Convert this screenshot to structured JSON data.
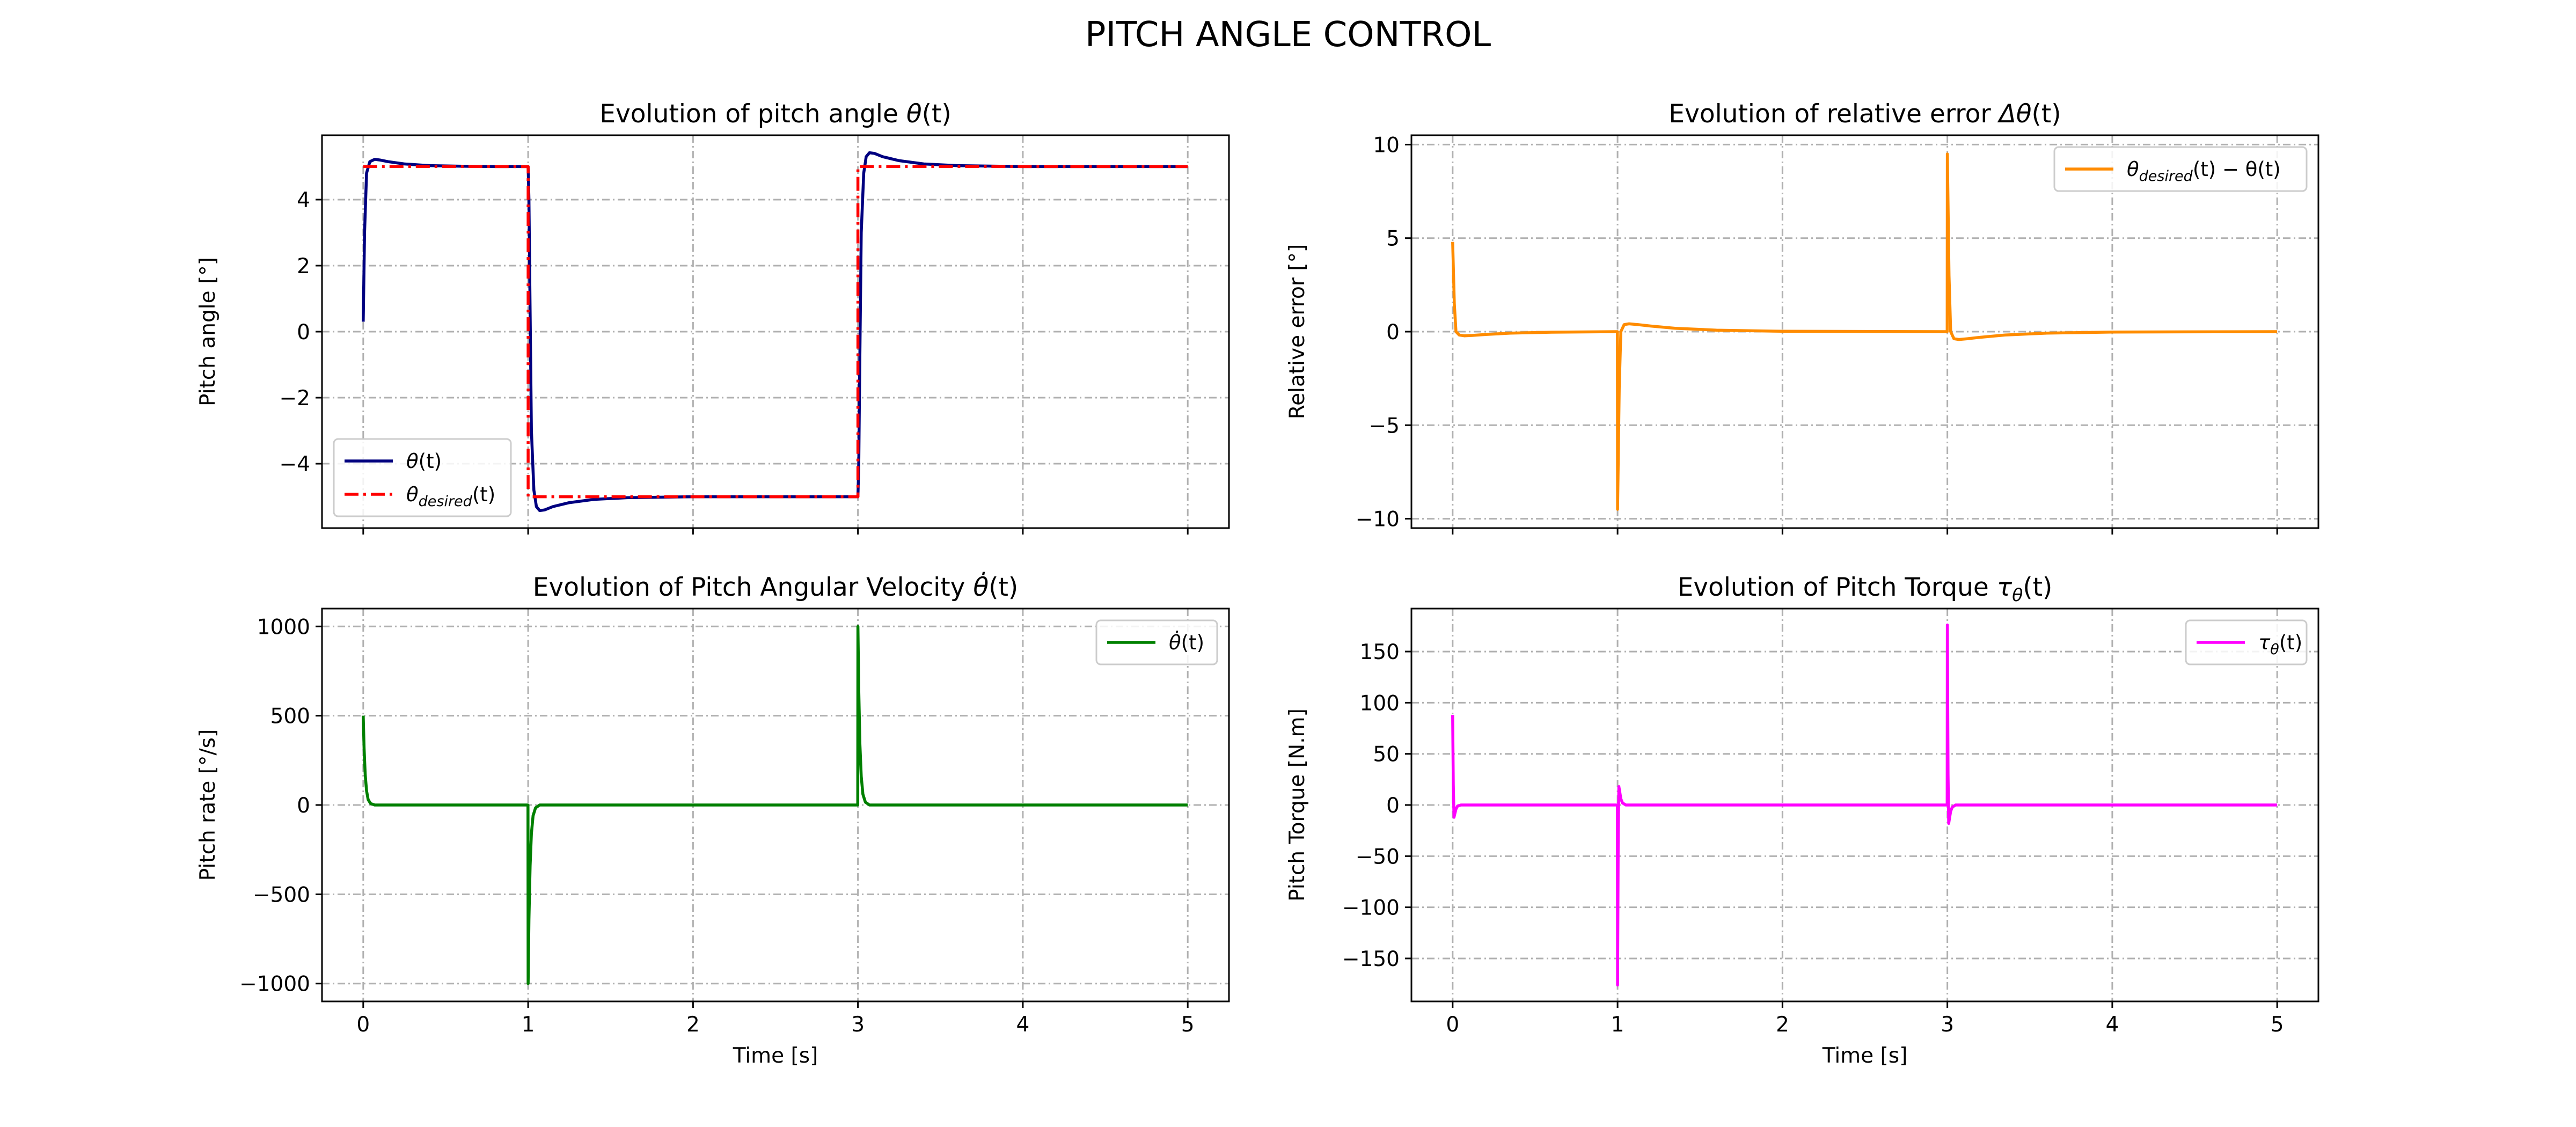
{
  "suptitle": "PITCH ANGLE CONTROL",
  "chart_data": [
    {
      "type": "line",
      "title_prefix": "Evolution of pitch angle ",
      "title_math": "θ",
      "title_suffix": "(t)",
      "xlabel": "",
      "ylabel": "Pitch angle [°]",
      "xlim": [
        -0.25,
        5.25
      ],
      "ylim": [
        -5.95,
        5.95
      ],
      "xticks": [
        0,
        1,
        2,
        3,
        4,
        5
      ],
      "xtick_labels": [
        "",
        "",
        "",
        "",
        "",
        ""
      ],
      "yticks": [
        -4,
        -2,
        0,
        2,
        4
      ],
      "ytick_labels": [
        "−4",
        "−2",
        "0",
        "2",
        "4"
      ],
      "grid": true,
      "legend_position": "lower-left",
      "series": [
        {
          "name": "θ(t)",
          "legend_main": "θ",
          "legend_sub": "",
          "legend_tail": "(t)",
          "color": "#000080",
          "dash": "solid",
          "x": [
            0,
            0.008,
            0.02,
            0.04,
            0.07,
            0.1,
            0.15,
            0.25,
            0.4,
            0.6,
            0.8,
            1.0,
            1.005,
            1.01,
            1.02,
            1.035,
            1.05,
            1.07,
            1.1,
            1.15,
            1.25,
            1.4,
            1.6,
            2.0,
            2.5,
            3.0,
            3.005,
            3.01,
            3.02,
            3.035,
            3.05,
            3.07,
            3.1,
            3.15,
            3.25,
            3.4,
            3.6,
            4.0,
            4.5,
            5.0
          ],
          "y": [
            0.3,
            3.0,
            4.8,
            5.15,
            5.22,
            5.2,
            5.15,
            5.08,
            5.03,
            5.01,
            5.0,
            5.0,
            4.0,
            1.5,
            -3.0,
            -4.8,
            -5.3,
            -5.42,
            -5.4,
            -5.3,
            -5.18,
            -5.08,
            -5.03,
            -5.0,
            -5.0,
            -5.0,
            -4.0,
            -1.5,
            3.0,
            4.8,
            5.3,
            5.42,
            5.4,
            5.3,
            5.18,
            5.08,
            5.03,
            5.0,
            5.0,
            5.0
          ]
        },
        {
          "name": "θdesired(t)",
          "legend_main": "θ",
          "legend_sub": "desired",
          "legend_tail": "(t)",
          "color": "#ff0000",
          "dash": "dashdot",
          "x": [
            0,
            1.0,
            1.0,
            3.0,
            3.0,
            5.0
          ],
          "y": [
            5,
            5,
            -5,
            -5,
            5,
            5
          ]
        }
      ]
    },
    {
      "type": "line",
      "title_prefix": "Evolution of relative error ",
      "title_math": "Δθ",
      "title_suffix": "(t)",
      "xlabel": "",
      "ylabel": "Relative error [°]",
      "xlim": [
        -0.25,
        5.25
      ],
      "ylim": [
        -10.5,
        10.5
      ],
      "xticks": [
        0,
        1,
        2,
        3,
        4,
        5
      ],
      "xtick_labels": [
        "",
        "",
        "",
        "",
        "",
        ""
      ],
      "yticks": [
        -10,
        -5,
        0,
        5,
        10
      ],
      "ytick_labels": [
        "−10",
        "−5",
        "0",
        "5",
        "10"
      ],
      "grid": true,
      "legend_position": "upper-right",
      "series": [
        {
          "name": "θdesired(t) − θ(t)",
          "legend_main": "θ",
          "legend_sub": "desired",
          "legend_tail": "(t) − θ(t)",
          "color": "#ff8c00",
          "dash": "solid",
          "x": [
            0,
            0.01,
            0.02,
            0.04,
            0.07,
            0.12,
            0.2,
            0.35,
            0.6,
            0.999,
            1.0,
            1.01,
            1.02,
            1.04,
            1.07,
            1.12,
            1.2,
            1.35,
            1.6,
            2.0,
            2.999,
            3.0,
            3.01,
            3.02,
            3.04,
            3.07,
            3.12,
            3.2,
            3.35,
            3.6,
            4.0,
            5.0
          ],
          "y": [
            4.8,
            1.5,
            0.0,
            -0.18,
            -0.22,
            -0.2,
            -0.15,
            -0.08,
            -0.03,
            0.0,
            -9.5,
            -3.0,
            0.0,
            0.38,
            0.42,
            0.38,
            0.3,
            0.18,
            0.08,
            0.02,
            0.0,
            9.5,
            3.0,
            0.0,
            -0.38,
            -0.42,
            -0.38,
            -0.3,
            -0.18,
            -0.08,
            -0.02,
            0.0
          ]
        }
      ]
    },
    {
      "type": "line",
      "title_prefix": "Evolution of Pitch Angular Velocity ",
      "title_math": "θ̇",
      "title_suffix": "(t)",
      "xlabel": "Time [s]",
      "ylabel": "Pitch rate [°/s]",
      "xlim": [
        -0.25,
        5.25
      ],
      "ylim": [
        -1100,
        1100
      ],
      "xticks": [
        0,
        1,
        2,
        3,
        4,
        5
      ],
      "xtick_labels": [
        "0",
        "1",
        "2",
        "3",
        "4",
        "5"
      ],
      "yticks": [
        -1000,
        -500,
        0,
        500,
        1000
      ],
      "ytick_labels": [
        "−1000",
        "−500",
        "0",
        "500",
        "1000"
      ],
      "grid": true,
      "legend_position": "upper-right",
      "series": [
        {
          "name": "θ̇(t)",
          "legend_main": "θ̇",
          "legend_sub": "",
          "legend_tail": "(t)",
          "color": "#008000",
          "dash": "solid",
          "x": [
            0,
            0.005,
            0.012,
            0.02,
            0.03,
            0.045,
            0.07,
            0.1,
            0.999,
            1.0,
            1.005,
            1.012,
            1.02,
            1.03,
            1.045,
            1.07,
            1.1,
            2.999,
            3.0,
            3.005,
            3.012,
            3.02,
            3.03,
            3.045,
            3.07,
            3.1,
            5.0
          ],
          "y": [
            500,
            320,
            170,
            80,
            30,
            8,
            0,
            0,
            0,
            -1000,
            -640,
            -340,
            -160,
            -60,
            -16,
            0,
            0,
            0,
            1000,
            640,
            340,
            160,
            60,
            16,
            0,
            0,
            0
          ]
        }
      ]
    },
    {
      "type": "line",
      "title_prefix": "Evolution of Pitch Torque ",
      "title_math": "τ",
      "title_math_sub": "θ",
      "title_suffix": "(t)",
      "xlabel": "Time [s]",
      "ylabel": "Pitch Torque [N.m]",
      "xlim": [
        -0.25,
        5.25
      ],
      "ylim": [
        -192,
        192
      ],
      "xticks": [
        0,
        1,
        2,
        3,
        4,
        5
      ],
      "xtick_labels": [
        "0",
        "1",
        "2",
        "3",
        "4",
        "5"
      ],
      "yticks": [
        -150,
        -100,
        -50,
        0,
        50,
        100,
        150
      ],
      "ytick_labels": [
        "−150",
        "−100",
        "−50",
        "0",
        "50",
        "100",
        "150"
      ],
      "grid": true,
      "legend_position": "upper-right",
      "series": [
        {
          "name": "τθ(t)",
          "legend_main": "τ",
          "legend_sub": "θ",
          "legend_tail": "(t)",
          "color": "#ff00ff",
          "dash": "solid",
          "x": [
            0,
            0.004,
            0.008,
            0.014,
            0.02,
            0.03,
            0.05,
            0.08,
            0.999,
            1.0,
            1.004,
            1.008,
            1.014,
            1.02,
            1.03,
            1.05,
            1.08,
            2.999,
            3.0,
            3.004,
            3.008,
            3.014,
            3.02,
            3.03,
            3.05,
            3.08,
            5.0
          ],
          "y": [
            88,
            20,
            -12,
            -8,
            -4,
            -1,
            0,
            0,
            0,
            -176,
            -30,
            18,
            12,
            6,
            2,
            0,
            0,
            0,
            176,
            30,
            -18,
            -12,
            -6,
            -2,
            0,
            0,
            0
          ]
        }
      ]
    }
  ]
}
